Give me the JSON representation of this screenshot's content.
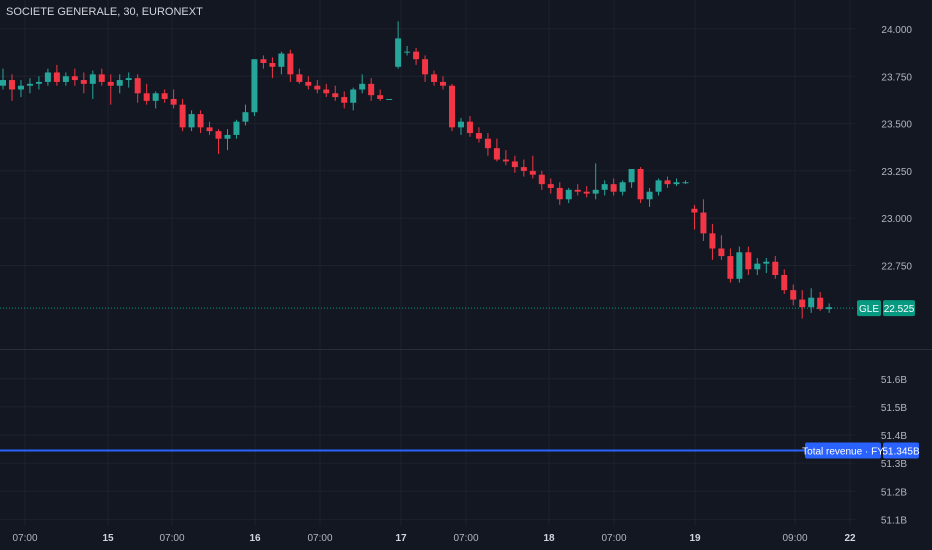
{
  "header": {
    "symbol_title": "SOCIETE GENERALE, 30, EURONEXT"
  },
  "colors": {
    "background": "#131722",
    "grid": "#1e222d",
    "up": "#26a69a",
    "down": "#f23645",
    "revenue_line": "#2962ff",
    "price_label_bg": "#089981"
  },
  "chart_data": [
    {
      "type": "candlestick",
      "title": "SOCIETE GENERALE, 30, EURONEXT",
      "ylim": [
        22.42,
        24.1
      ],
      "y_ticks": [
        "24.000",
        "23.750",
        "23.500",
        "23.250",
        "23.000",
        "22.750"
      ],
      "x_ticks": [
        "07:00",
        "15",
        "07:00",
        "16",
        "07:00",
        "17",
        "07:00",
        "18",
        "07:00",
        "19",
        "09:00",
        "22"
      ],
      "x_ticks_bold": [
        "15",
        "16",
        "17",
        "18",
        "19",
        "22"
      ],
      "candles": [
        [
          23.7,
          23.79,
          23.68,
          23.73
        ],
        [
          23.73,
          23.76,
          23.62,
          23.68
        ],
        [
          23.68,
          23.73,
          23.64,
          23.7
        ],
        [
          23.7,
          23.74,
          23.66,
          23.71
        ],
        [
          23.71,
          23.75,
          23.68,
          23.72
        ],
        [
          23.72,
          23.79,
          23.7,
          23.77
        ],
        [
          23.77,
          23.81,
          23.7,
          23.72
        ],
        [
          23.72,
          23.77,
          23.7,
          23.75
        ],
        [
          23.75,
          23.79,
          23.7,
          23.73
        ],
        [
          23.73,
          23.77,
          23.66,
          23.71
        ],
        [
          23.71,
          23.78,
          23.63,
          23.76
        ],
        [
          23.76,
          23.79,
          23.7,
          23.72
        ],
        [
          23.72,
          23.76,
          23.6,
          23.7
        ],
        [
          23.7,
          23.76,
          23.66,
          23.73
        ],
        [
          23.73,
          23.77,
          23.69,
          23.74
        ],
        [
          23.74,
          23.76,
          23.61,
          23.66
        ],
        [
          23.66,
          23.71,
          23.6,
          23.62
        ],
        [
          23.62,
          23.67,
          23.58,
          23.66
        ],
        [
          23.66,
          23.68,
          23.61,
          23.63
        ],
        [
          23.63,
          23.68,
          23.58,
          23.6
        ],
        [
          23.6,
          23.63,
          23.46,
          23.48
        ],
        [
          23.48,
          23.57,
          23.46,
          23.55
        ],
        [
          23.55,
          23.57,
          23.45,
          23.48
        ],
        [
          23.48,
          23.51,
          23.44,
          23.46
        ],
        [
          23.46,
          23.47,
          23.34,
          23.42
        ],
        [
          23.42,
          23.47,
          23.36,
          23.44
        ],
        [
          23.44,
          23.52,
          23.42,
          23.51
        ],
        [
          23.51,
          23.6,
          23.49,
          23.56
        ],
        [
          23.56,
          23.84,
          23.54,
          23.84
        ],
        [
          23.84,
          23.86,
          23.79,
          23.82
        ],
        [
          23.82,
          23.85,
          23.74,
          23.8
        ],
        [
          23.8,
          23.88,
          23.76,
          23.87
        ],
        [
          23.87,
          23.89,
          23.72,
          23.76
        ],
        [
          23.76,
          23.79,
          23.71,
          23.72
        ],
        [
          23.72,
          23.75,
          23.68,
          23.7
        ],
        [
          23.7,
          23.73,
          23.66,
          23.68
        ],
        [
          23.68,
          23.71,
          23.64,
          23.66
        ],
        [
          23.66,
          23.7,
          23.62,
          23.64
        ],
        [
          23.64,
          23.67,
          23.58,
          23.61
        ],
        [
          23.61,
          23.69,
          23.57,
          23.68
        ],
        [
          23.68,
          23.76,
          23.66,
          23.71
        ],
        [
          23.71,
          23.74,
          23.62,
          23.65
        ],
        [
          23.65,
          23.68,
          23.62,
          23.63
        ],
        [
          23.63,
          23.63,
          23.63,
          23.63
        ],
        [
          23.8,
          24.04,
          23.79,
          23.95
        ],
        [
          23.88,
          23.91,
          23.86,
          23.88
        ],
        [
          23.88,
          23.9,
          23.81,
          23.84
        ],
        [
          23.84,
          23.86,
          23.72,
          23.76
        ],
        [
          23.76,
          23.78,
          23.7,
          23.72
        ],
        [
          23.72,
          23.75,
          23.68,
          23.7
        ],
        [
          23.7,
          23.71,
          23.46,
          23.48
        ],
        [
          23.48,
          23.53,
          23.44,
          23.51
        ],
        [
          23.51,
          23.54,
          23.43,
          23.45
        ],
        [
          23.45,
          23.48,
          23.4,
          23.42
        ],
        [
          23.42,
          23.45,
          23.33,
          23.37
        ],
        [
          23.37,
          23.42,
          23.3,
          23.31
        ],
        [
          23.31,
          23.36,
          23.28,
          23.3
        ],
        [
          23.3,
          23.33,
          23.24,
          23.27
        ],
        [
          23.27,
          23.31,
          23.22,
          23.25
        ],
        [
          23.25,
          23.33,
          23.21,
          23.23
        ],
        [
          23.23,
          23.25,
          23.15,
          23.18
        ],
        [
          23.18,
          23.21,
          23.13,
          23.16
        ],
        [
          23.16,
          23.19,
          23.07,
          23.1
        ],
        [
          23.1,
          23.16,
          23.08,
          23.15
        ],
        [
          23.15,
          23.18,
          23.12,
          23.14
        ],
        [
          23.14,
          23.17,
          23.11,
          23.13
        ],
        [
          23.13,
          23.29,
          23.1,
          23.15
        ],
        [
          23.15,
          23.2,
          23.12,
          23.18
        ],
        [
          23.18,
          23.21,
          23.12,
          23.14
        ],
        [
          23.14,
          23.2,
          23.12,
          23.19
        ],
        [
          23.19,
          23.25,
          23.16,
          23.26
        ],
        [
          23.26,
          23.27,
          23.08,
          23.1
        ],
        [
          23.1,
          23.16,
          23.06,
          23.14
        ],
        [
          23.14,
          23.21,
          23.12,
          23.2
        ],
        [
          23.2,
          23.22,
          23.16,
          23.18
        ],
        [
          23.18,
          23.21,
          23.17,
          23.19
        ],
        [
          23.19,
          23.2,
          23.18,
          23.19
        ],
        [
          23.05,
          23.07,
          22.94,
          23.03
        ],
        [
          23.03,
          23.1,
          22.88,
          22.92
        ],
        [
          22.92,
          22.97,
          22.78,
          22.84
        ],
        [
          22.84,
          22.91,
          22.78,
          22.8
        ],
        [
          22.8,
          22.84,
          22.66,
          22.68
        ],
        [
          22.68,
          22.85,
          22.66,
          22.82
        ],
        [
          22.82,
          22.85,
          22.7,
          22.73
        ],
        [
          22.73,
          22.79,
          22.7,
          22.76
        ],
        [
          22.76,
          22.79,
          22.71,
          22.77
        ],
        [
          22.77,
          22.8,
          22.68,
          22.7
        ],
        [
          22.7,
          22.73,
          22.6,
          22.62
        ],
        [
          22.62,
          22.65,
          22.54,
          22.57
        ],
        [
          22.57,
          22.62,
          22.47,
          22.53
        ],
        [
          22.53,
          22.63,
          22.5,
          22.58
        ],
        [
          22.58,
          22.61,
          22.51,
          22.52
        ],
        [
          22.52,
          22.55,
          22.5,
          22.53
        ]
      ],
      "price_label": {
        "symbol": "GLE",
        "value": "22.525",
        "price": 22.525
      }
    },
    {
      "type": "line",
      "ylim": [
        51.08,
        51.72
      ],
      "y_ticks": [
        "51.6B",
        "51.5B",
        "51.4B",
        "51.3B",
        "51.2B",
        "51.1B"
      ],
      "series": [
        {
          "name": "Total revenue · FY",
          "value": 51.345,
          "value_label": "51.345B"
        }
      ]
    }
  ]
}
